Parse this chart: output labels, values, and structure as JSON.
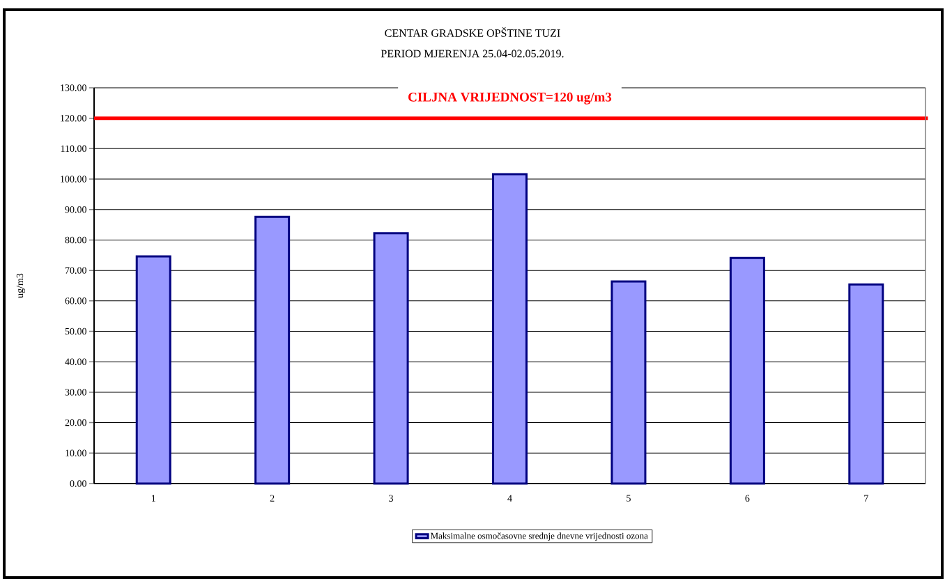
{
  "chart_data": {
    "type": "bar",
    "title": "CENTAR GRADSKE OPŠTINE TUZI",
    "subtitle": "PERIOD MJERENJA 25.04-02.05.2019.",
    "ylabel": "ug/m3",
    "categories": [
      "1",
      "2",
      "3",
      "4",
      "5",
      "6",
      "7"
    ],
    "series": [
      {
        "name": "Maksimalne osmočasovne srednje dnevne vrijednosti ozona",
        "color": "#9999ff",
        "values": [
          74.6,
          87.6,
          82.2,
          101.6,
          66.4,
          74.1,
          65.4
        ]
      }
    ],
    "ylim": [
      0,
      130
    ],
    "yticks": [
      {
        "value": 0,
        "label": "0.00"
      },
      {
        "value": 10,
        "label": "10.00"
      },
      {
        "value": 20,
        "label": "20.00"
      },
      {
        "value": 30,
        "label": "30.00"
      },
      {
        "value": 40,
        "label": "40.00"
      },
      {
        "value": 50,
        "label": "50.00"
      },
      {
        "value": 60,
        "label": "60.00"
      },
      {
        "value": 70,
        "label": "70.00"
      },
      {
        "value": 80,
        "label": "80.00"
      },
      {
        "value": 90,
        "label": "90.00"
      },
      {
        "value": 100,
        "label": "100.00"
      },
      {
        "value": 110,
        "label": "110.00"
      },
      {
        "value": 120,
        "label": "120.00"
      },
      {
        "value": 130,
        "label": "130.00"
      }
    ],
    "ref_lines": [
      {
        "axis": "y",
        "value": 120,
        "label": "CILJNA VRIJEDNOST=120 ug/m3",
        "color": "#ff0000"
      }
    ],
    "grid": "y",
    "legend": "bottom"
  }
}
